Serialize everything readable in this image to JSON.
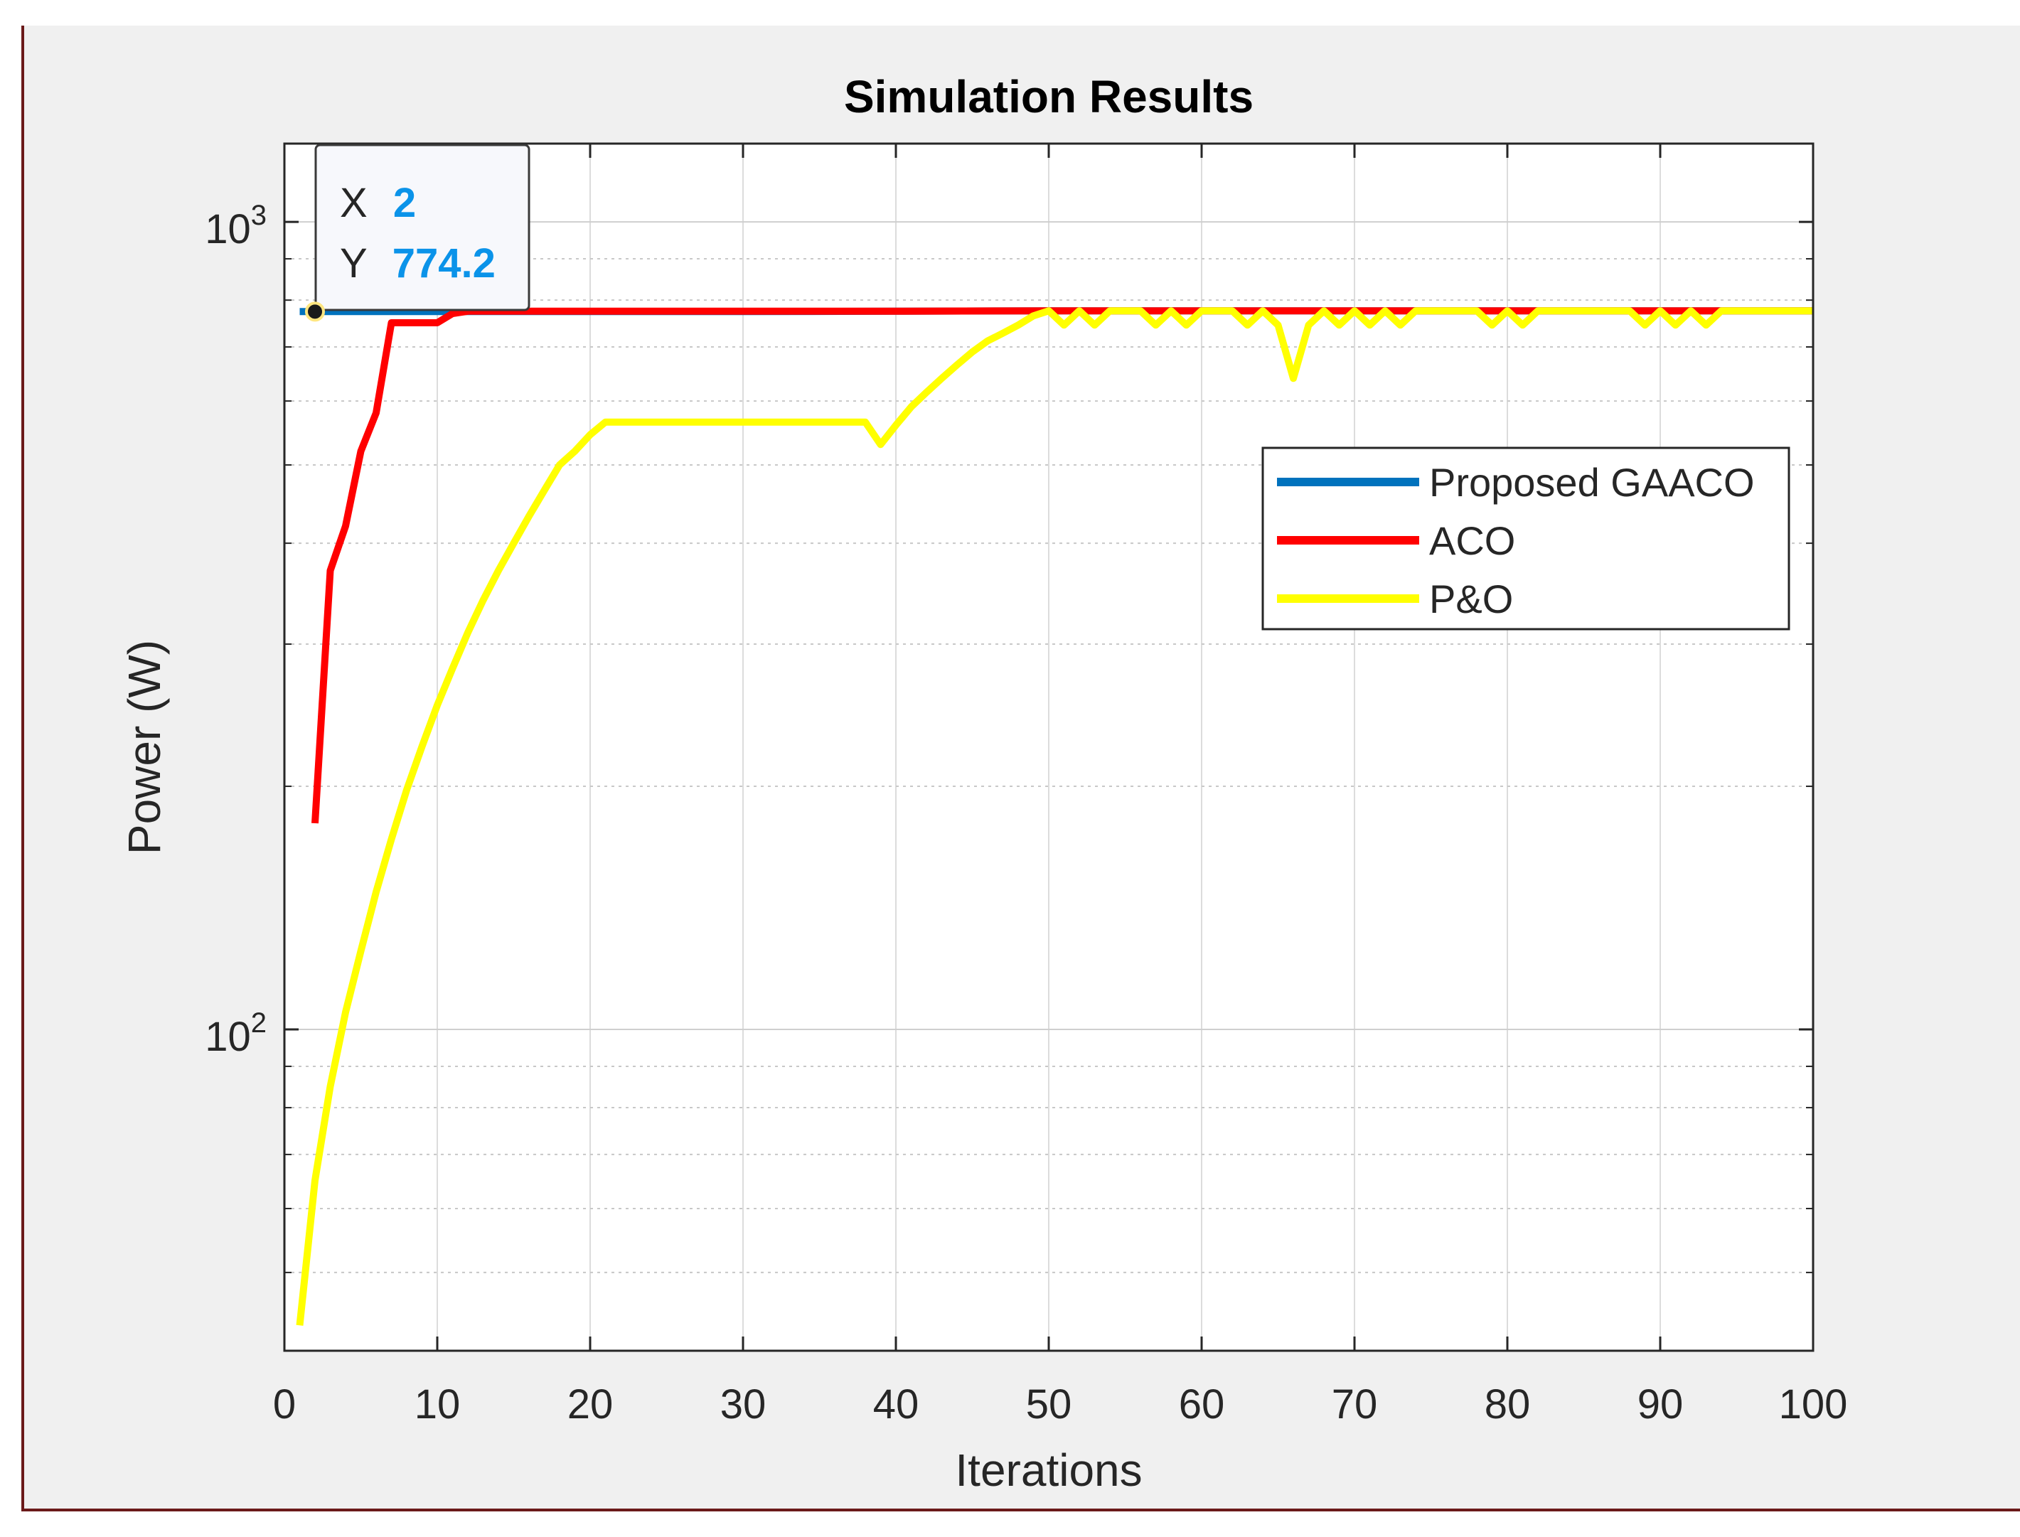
{
  "chart_data": {
    "type": "line",
    "title": "Simulation Results",
    "xlabel": "Iterations",
    "ylabel": "Power (W)",
    "xlim": [
      0,
      100
    ],
    "ylim": [
      40,
      1250
    ],
    "yscale": "log",
    "grid": true,
    "minor_grid": true,
    "x_ticks": [
      0,
      10,
      20,
      30,
      40,
      50,
      60,
      70,
      80,
      90,
      100
    ],
    "x_tick_labels": [
      "0",
      "10",
      "20",
      "30",
      "40",
      "50",
      "60",
      "70",
      "80",
      "90",
      "100"
    ],
    "y_ticks": [
      100,
      1000
    ],
    "y_tick_bases": [
      "10",
      "10"
    ],
    "y_tick_exponents": [
      "2",
      "3"
    ],
    "legend_position": "upper-right",
    "series": [
      {
        "name": "Proposed GAACO",
        "color": "#0072bd",
        "points": [
          [
            1,
            774.2
          ],
          [
            2,
            774.2
          ],
          [
            10,
            774.2
          ],
          [
            20,
            774.2
          ],
          [
            30,
            774.2
          ],
          [
            40,
            775
          ],
          [
            50,
            776
          ],
          [
            60,
            776
          ],
          [
            70,
            776
          ],
          [
            80,
            776
          ],
          [
            90,
            776
          ],
          [
            100,
            776
          ]
        ]
      },
      {
        "name": "ACO",
        "color": "#ff0000",
        "points": [
          [
            2,
            180
          ],
          [
            3,
            370
          ],
          [
            4,
            420
          ],
          [
            5,
            520
          ],
          [
            6,
            580
          ],
          [
            7,
            750
          ],
          [
            8,
            750
          ],
          [
            9,
            750
          ],
          [
            10,
            750
          ],
          [
            11,
            770
          ],
          [
            12,
            775
          ],
          [
            20,
            775
          ],
          [
            30,
            775
          ],
          [
            40,
            775
          ],
          [
            50,
            776
          ],
          [
            60,
            776
          ],
          [
            70,
            776
          ],
          [
            80,
            776
          ],
          [
            90,
            776
          ],
          [
            100,
            776
          ]
        ]
      },
      {
        "name": "P&O",
        "color": "#ffff00",
        "points": [
          [
            1,
            43
          ],
          [
            2,
            65
          ],
          [
            3,
            85
          ],
          [
            4,
            105
          ],
          [
            5,
            125
          ],
          [
            6,
            148
          ],
          [
            7,
            172
          ],
          [
            8,
            198
          ],
          [
            9,
            224
          ],
          [
            10,
            252
          ],
          [
            11,
            280
          ],
          [
            12,
            310
          ],
          [
            13,
            340
          ],
          [
            14,
            370
          ],
          [
            15,
            400
          ],
          [
            16,
            432
          ],
          [
            17,
            465
          ],
          [
            18,
            500
          ],
          [
            19,
            520
          ],
          [
            20,
            545
          ],
          [
            21,
            565
          ],
          [
            25,
            565
          ],
          [
            30,
            565
          ],
          [
            35,
            565
          ],
          [
            38,
            565
          ],
          [
            39,
            530
          ],
          [
            40,
            560
          ],
          [
            41,
            590
          ],
          [
            42,
            615
          ],
          [
            43,
            640
          ],
          [
            44,
            665
          ],
          [
            45,
            690
          ],
          [
            46,
            712
          ],
          [
            47,
            728
          ],
          [
            48,
            745
          ],
          [
            49,
            765
          ],
          [
            50,
            776
          ],
          [
            51,
            745
          ],
          [
            52,
            776
          ],
          [
            53,
            745
          ],
          [
            54,
            776
          ],
          [
            55,
            776
          ],
          [
            56,
            776
          ],
          [
            57,
            745
          ],
          [
            58,
            776
          ],
          [
            59,
            745
          ],
          [
            60,
            776
          ],
          [
            61,
            776
          ],
          [
            62,
            776
          ],
          [
            63,
            745
          ],
          [
            64,
            776
          ],
          [
            65,
            745
          ],
          [
            66,
            640
          ],
          [
            67,
            745
          ],
          [
            68,
            776
          ],
          [
            69,
            745
          ],
          [
            70,
            776
          ],
          [
            71,
            745
          ],
          [
            72,
            776
          ],
          [
            73,
            745
          ],
          [
            74,
            776
          ],
          [
            75,
            776
          ],
          [
            76,
            776
          ],
          [
            77,
            776
          ],
          [
            78,
            776
          ],
          [
            79,
            745
          ],
          [
            80,
            776
          ],
          [
            81,
            745
          ],
          [
            82,
            776
          ],
          [
            83,
            776
          ],
          [
            84,
            776
          ],
          [
            85,
            776
          ],
          [
            86,
            776
          ],
          [
            87,
            776
          ],
          [
            88,
            776
          ],
          [
            89,
            745
          ],
          [
            90,
            776
          ],
          [
            91,
            745
          ],
          [
            92,
            776
          ],
          [
            93,
            745
          ],
          [
            94,
            776
          ],
          [
            95,
            776
          ],
          [
            96,
            776
          ],
          [
            97,
            776
          ],
          [
            98,
            776
          ],
          [
            99,
            776
          ],
          [
            100,
            776
          ]
        ]
      }
    ],
    "datatip": {
      "x_label": "X",
      "x_value": "2",
      "y_label": "Y",
      "y_value": "774.2",
      "x": 2,
      "y": 774.2
    }
  },
  "colors": {
    "figure_bg": "#f0f0f0",
    "axes_bg": "#ffffff",
    "frame": "#6b1a1a",
    "datatip_value": "#0b93e9"
  }
}
